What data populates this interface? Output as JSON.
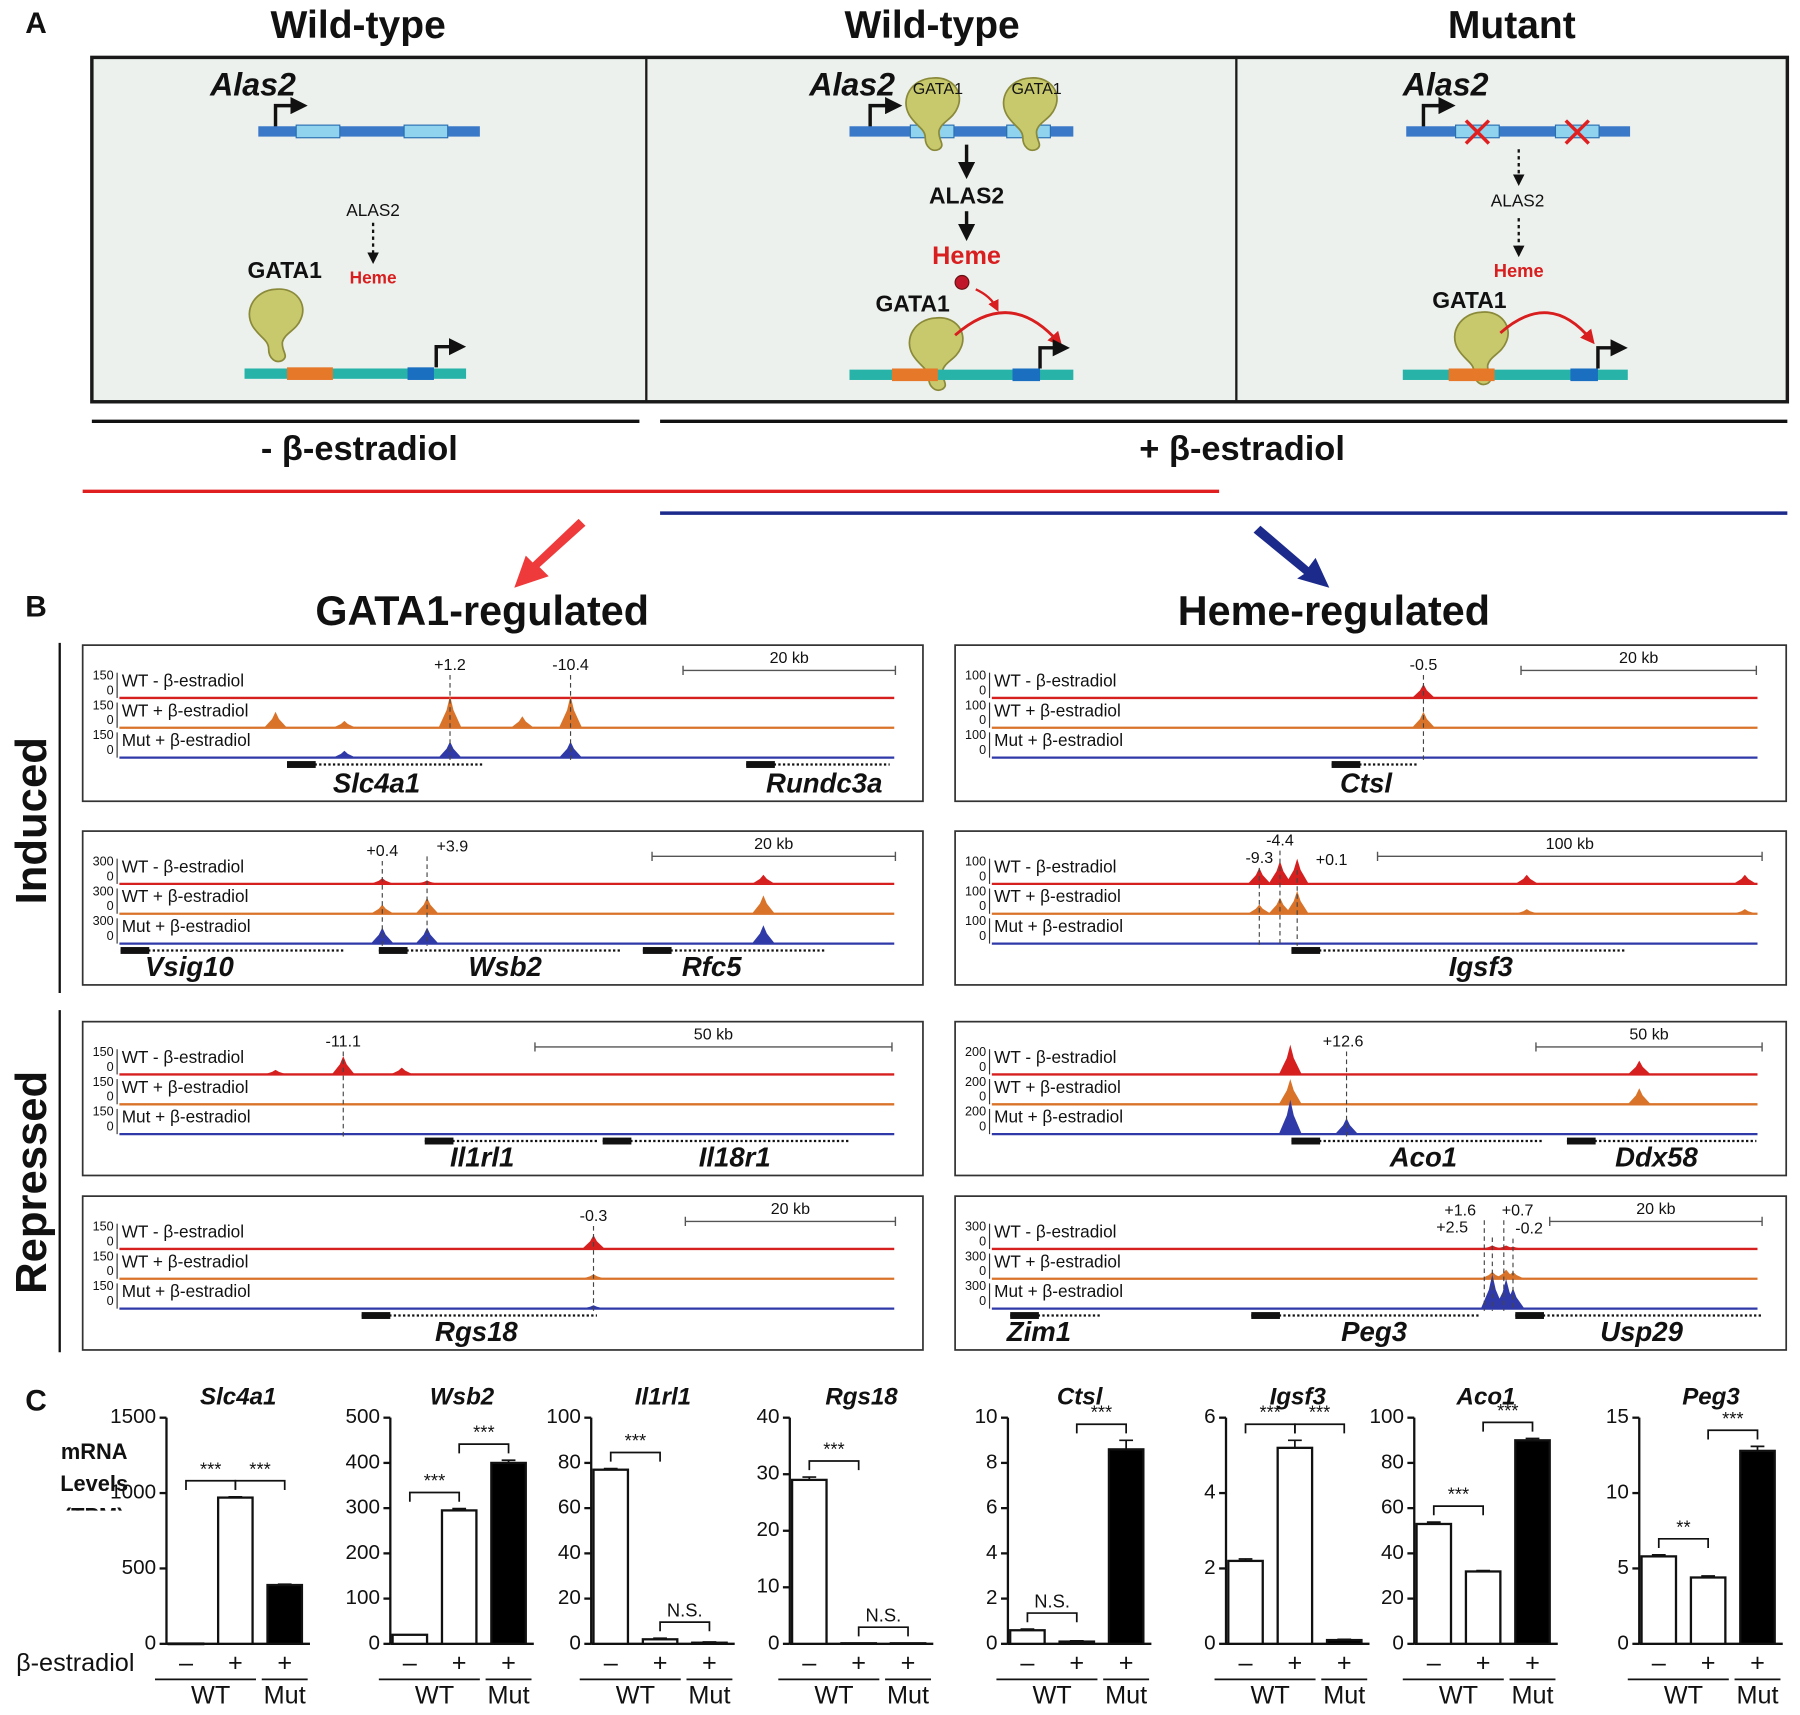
{
  "panel_a": {
    "label": "A",
    "columns": [
      {
        "title": "Wild-type",
        "gene": "Alas2",
        "product": "ALAS2",
        "heme": "Heme",
        "factor": "GATA1"
      },
      {
        "title": "Wild-type",
        "gene": "Alas2",
        "bound_factor": "GATA1",
        "product": "ALAS2",
        "heme": "Heme",
        "factor": "GATA1"
      },
      {
        "title": "Mutant",
        "gene": "Alas2",
        "product": "ALAS2",
        "heme": "Heme",
        "factor": "GATA1"
      }
    ],
    "conditions": [
      "- β-estradiol",
      "+ β-estradiol"
    ]
  },
  "panel_b": {
    "label": "B",
    "headers": [
      "GATA1-regulated",
      "Heme-regulated"
    ],
    "row_labels": [
      "Induced",
      "Repressed"
    ],
    "track_labels": [
      "WT - β-estradiol",
      "WT + β-estradiol",
      "Mut + β-estradiol"
    ],
    "tracks": [
      {
        "y_max": 150,
        "y_min": 0,
        "scale": "20 kb",
        "peaks": [
          "+1.2",
          "-10.4"
        ],
        "genes": [
          "Slc4a1",
          "Rundc3a"
        ]
      },
      {
        "y_max": 300,
        "y_min": 0,
        "scale": "20 kb",
        "peaks": [
          "+0.4",
          "+3.9"
        ],
        "genes": [
          "Vsig10",
          "Wsb2",
          "Rfc5"
        ]
      },
      {
        "y_max": 150,
        "y_min": 0,
        "scale": "50 kb",
        "peaks": [
          "-11.1"
        ],
        "genes": [
          "Il1rl1",
          "Il18r1"
        ]
      },
      {
        "y_max": 150,
        "y_min": 0,
        "scale": "20 kb",
        "peaks": [
          "-0.3"
        ],
        "genes": [
          "Rgs18"
        ]
      },
      {
        "y_max": 100,
        "y_min": 0,
        "scale": "20 kb",
        "peaks": [
          "-0.5"
        ],
        "genes": [
          "Ctsl"
        ]
      },
      {
        "y_max": 100,
        "y_min": 0,
        "scale": "100 kb",
        "peaks": [
          "-9.3",
          "-4.4",
          "+0.1"
        ],
        "genes": [
          "Igsf3"
        ]
      },
      {
        "y_max": 200,
        "y_min": 0,
        "scale": "50 kb",
        "peaks": [
          "+12.6"
        ],
        "genes": [
          "Aco1",
          "Ddx58"
        ]
      },
      {
        "y_max": 300,
        "y_min": 0,
        "scale": "20 kb",
        "peaks": [
          "+1.6",
          "+2.5",
          "+0.7",
          "-0.2"
        ],
        "genes": [
          "Zim1",
          "Peg3",
          "Usp29"
        ]
      }
    ]
  },
  "panel_c_label": "C",
  "chart_data": [
    {
      "type": "bar",
      "title": "Slc4a1",
      "ylabel": "mRNA Levels (TPM)",
      "xlabel": "β-estradiol",
      "categories": [
        "–",
        "+",
        "+"
      ],
      "groups": [
        "WT",
        "Mut"
      ],
      "values": [
        2,
        970,
        390
      ],
      "errors": [
        0,
        5,
        5
      ],
      "colors": [
        "#ffffff",
        "#ffffff",
        "#000000"
      ],
      "significance": [
        "***",
        "***"
      ],
      "ylim": [
        0,
        1500
      ],
      "yticks": [
        0,
        500,
        1000,
        1500
      ]
    },
    {
      "type": "bar",
      "title": "Wsb2",
      "categories": [
        "–",
        "+",
        "+"
      ],
      "groups": [
        "WT",
        "Mut"
      ],
      "values": [
        20,
        295,
        400
      ],
      "errors": [
        0,
        4,
        6
      ],
      "colors": [
        "#ffffff",
        "#ffffff",
        "#000000"
      ],
      "significance": [
        "***",
        "***"
      ],
      "ylim": [
        0,
        500
      ],
      "yticks": [
        0,
        100,
        200,
        300,
        400,
        500
      ]
    },
    {
      "type": "bar",
      "title": "Il1rl1",
      "categories": [
        "–",
        "+",
        "+"
      ],
      "groups": [
        "WT",
        "Mut"
      ],
      "values": [
        77,
        2,
        0.5
      ],
      "errors": [
        0.5,
        0.5,
        0.3
      ],
      "colors": [
        "#ffffff",
        "#ffffff",
        "#000000"
      ],
      "significance": [
        "***",
        "N.S."
      ],
      "ylim": [
        0,
        100
      ],
      "yticks": [
        0,
        20,
        40,
        60,
        80,
        100
      ]
    },
    {
      "type": "bar",
      "title": "Rgs18",
      "categories": [
        "–",
        "+",
        "+"
      ],
      "groups": [
        "WT",
        "Mut"
      ],
      "values": [
        29,
        0.1,
        0.1
      ],
      "errors": [
        0.5,
        0,
        0
      ],
      "colors": [
        "#ffffff",
        "#ffffff",
        "#000000"
      ],
      "significance": [
        "***",
        "N.S."
      ],
      "ylim": [
        0,
        40
      ],
      "yticks": [
        0,
        10,
        20,
        30,
        40
      ]
    },
    {
      "type": "bar",
      "title": "Ctsl",
      "categories": [
        "–",
        "+",
        "+"
      ],
      "groups": [
        "WT",
        "Mut"
      ],
      "values": [
        0.6,
        0.1,
        8.6
      ],
      "errors": [
        0.05,
        0.03,
        0.4
      ],
      "colors": [
        "#ffffff",
        "#ffffff",
        "#000000"
      ],
      "significance": [
        "N.S.",
        "***"
      ],
      "ylim": [
        0,
        10
      ],
      "yticks": [
        0,
        2,
        4,
        6,
        8,
        10
      ]
    },
    {
      "type": "bar",
      "title": "Igsf3",
      "categories": [
        "–",
        "+",
        "+"
      ],
      "groups": [
        "WT",
        "Mut"
      ],
      "values": [
        2.2,
        5.2,
        0.1
      ],
      "errors": [
        0.05,
        0.2,
        0.02
      ],
      "colors": [
        "#ffffff",
        "#ffffff",
        "#000000"
      ],
      "significance": [
        "***",
        "***"
      ],
      "ylim": [
        0,
        6
      ],
      "yticks": [
        0,
        2,
        4,
        6
      ]
    },
    {
      "type": "bar",
      "title": "Aco1",
      "categories": [
        "–",
        "+",
        "+"
      ],
      "groups": [
        "WT",
        "Mut"
      ],
      "values": [
        53,
        32,
        90
      ],
      "errors": [
        0.8,
        0.4,
        0.8
      ],
      "colors": [
        "#ffffff",
        "#ffffff",
        "#000000"
      ],
      "significance": [
        "***",
        "***"
      ],
      "ylim": [
        0,
        100
      ],
      "yticks": [
        0,
        20,
        40,
        60,
        80,
        100
      ]
    },
    {
      "type": "bar",
      "title": "Peg3",
      "categories": [
        "–",
        "+",
        "+"
      ],
      "groups": [
        "WT",
        "Mut"
      ],
      "values": [
        5.8,
        4.4,
        12.8
      ],
      "errors": [
        0.1,
        0.1,
        0.3
      ],
      "colors": [
        "#ffffff",
        "#ffffff",
        "#000000"
      ],
      "significance": [
        "**",
        "***"
      ],
      "ylim": [
        0,
        15
      ],
      "yticks": [
        0,
        5,
        10,
        15
      ]
    }
  ]
}
